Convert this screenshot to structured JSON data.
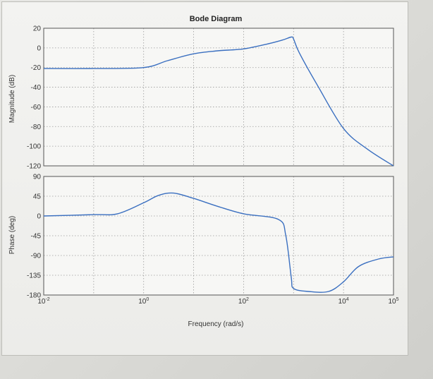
{
  "chart_data": {
    "type": "line",
    "title": "Bode Diagram",
    "xlabel": "Frequency (rad/s)",
    "xscale": "log",
    "xlim": [
      0.01,
      100000
    ],
    "x_tick_labels": [
      "10",
      "10",
      "10",
      "10",
      "10"
    ],
    "x_tick_exponents": [
      "-2",
      "0",
      "2",
      "4",
      "5"
    ],
    "line_color": "#3a6fc0",
    "grid": "dotted",
    "magnitude": {
      "ylabel": "Magnitude (dB)",
      "ylim": [
        -120,
        20
      ],
      "yticks": [
        "20",
        "0",
        "-20",
        "-40",
        "-60",
        "-80",
        "-100",
        "-120"
      ],
      "x": [
        0.01,
        0.1,
        1,
        3,
        10,
        30,
        100,
        300,
        600,
        900,
        1000,
        1300,
        3000,
        10000,
        30000,
        100000
      ],
      "y": [
        -21,
        -21,
        -20,
        -13,
        -6,
        -3,
        -1,
        4,
        8,
        11,
        9,
        -5,
        -38,
        -82,
        -103,
        -120
      ]
    },
    "phase": {
      "ylabel": "Phase (deg)",
      "ylim": [
        -180,
        90
      ],
      "yticks": [
        "90",
        "45",
        "0",
        "-45",
        "-90",
        "-135",
        "-180"
      ],
      "x": [
        0.01,
        0.1,
        0.3,
        1,
        2,
        4,
        10,
        30,
        100,
        500,
        700,
        900,
        1000,
        2000,
        5000,
        10000,
        20000,
        50000,
        100000
      ],
      "y": [
        0,
        3,
        5,
        30,
        47,
        52,
        40,
        22,
        5,
        -8,
        -45,
        -140,
        -165,
        -172,
        -172,
        -150,
        -115,
        -98,
        -93
      ]
    }
  }
}
